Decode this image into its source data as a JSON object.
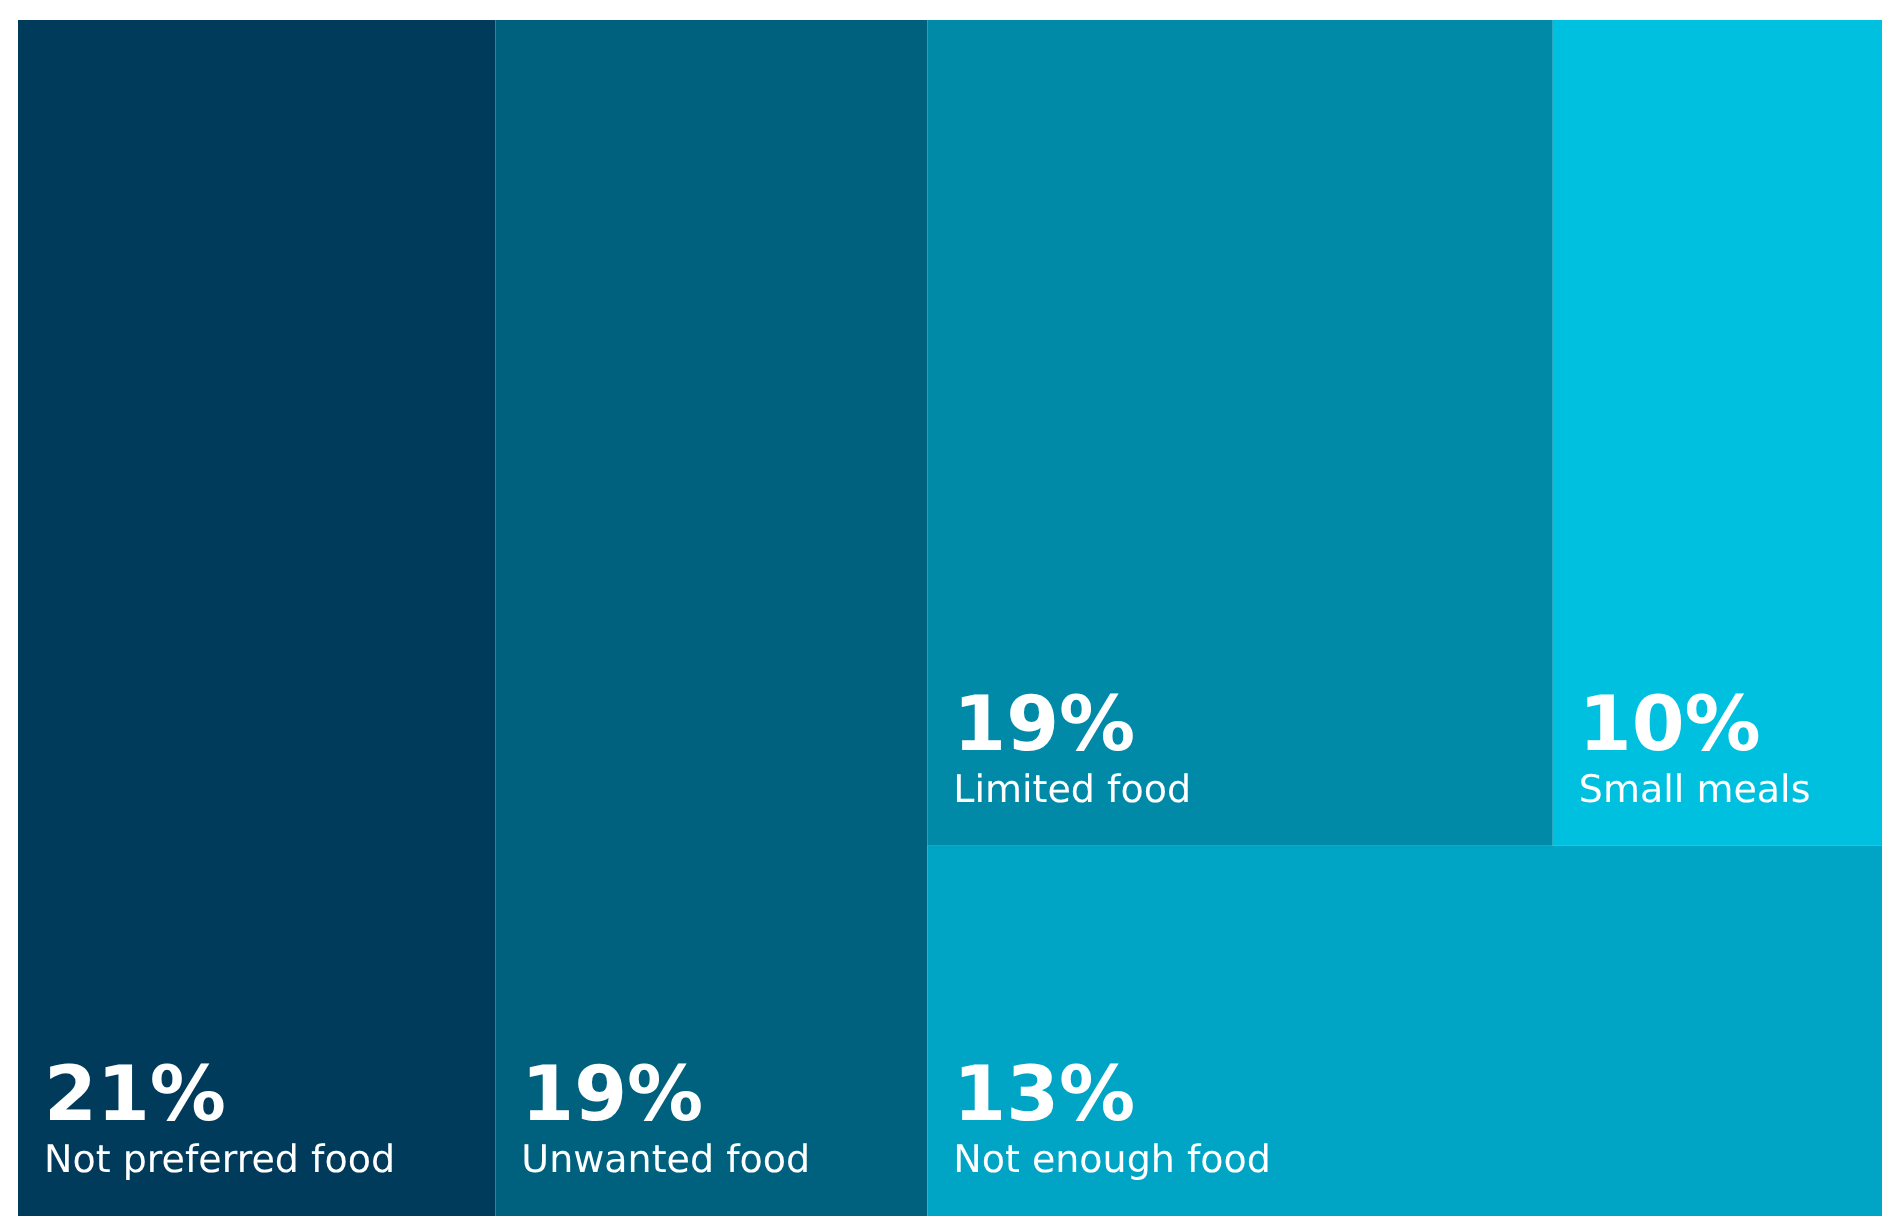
{
  "chart_data": {
    "type": "other",
    "categories": [
      "Not preferred food",
      "Unwanted food",
      "Limited food",
      "Small meals",
      "Not enough food"
    ],
    "values": [
      21,
      19,
      19,
      10,
      13
    ],
    "value_labels": [
      "21%",
      "19%",
      "19%",
      "10%",
      "13%"
    ],
    "colors": [
      "#003b5c",
      "#00617f",
      "#008aa8",
      "#00c0e0",
      "#00a5c6"
    ]
  }
}
